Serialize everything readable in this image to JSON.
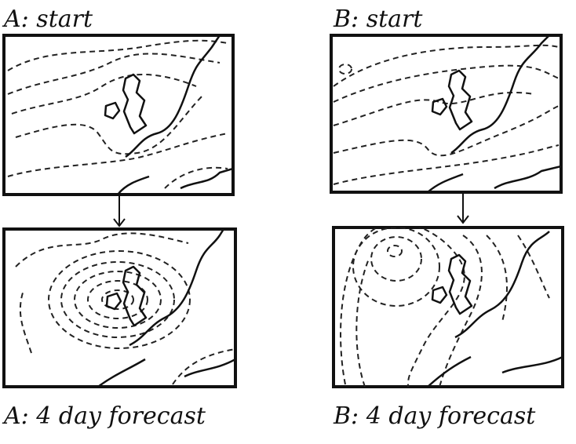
{
  "panels": [
    {
      "label": "A: start"
    },
    {
      "label": "B: start"
    },
    {
      "label": "A: 4 day forecast"
    },
    {
      "label": "B: 4 day forecast"
    }
  ]
}
